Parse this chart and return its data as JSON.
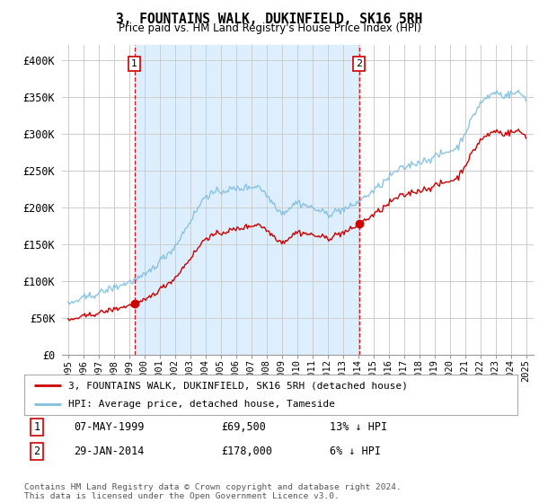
{
  "title": "3, FOUNTAINS WALK, DUKINFIELD, SK16 5RH",
  "subtitle": "Price paid vs. HM Land Registry's House Price Index (HPI)",
  "ylim": [
    0,
    420000
  ],
  "yticks": [
    0,
    50000,
    100000,
    150000,
    200000,
    250000,
    300000,
    350000,
    400000
  ],
  "ytick_labels": [
    "£0",
    "£50K",
    "£100K",
    "£150K",
    "£200K",
    "£250K",
    "£300K",
    "£350K",
    "£400K"
  ],
  "hpi_color": "#7fbfdf",
  "price_color": "#cc0000",
  "shade_color": "#ddeeff",
  "annotation_color": "#cc0000",
  "marker_color": "#cc0000",
  "grid_color": "#cccccc",
  "bg_color": "#ffffff",
  "legend_label_red": "3, FOUNTAINS WALK, DUKINFIELD, SK16 5RH (detached house)",
  "legend_label_blue": "HPI: Average price, detached house, Tameside",
  "annotation1_label": "1",
  "annotation1_date": "07-MAY-1999",
  "annotation1_price": "£69,500",
  "annotation1_hpi": "13% ↓ HPI",
  "annotation2_label": "2",
  "annotation2_date": "29-JAN-2014",
  "annotation2_price": "£178,000",
  "annotation2_hpi": "6% ↓ HPI",
  "footer": "Contains HM Land Registry data © Crown copyright and database right 2024.\nThis data is licensed under the Open Government Licence v3.0.",
  "sale1_year": 1999.35,
  "sale1_value": 69500,
  "sale2_year": 2014.07,
  "sale2_value": 178000
}
